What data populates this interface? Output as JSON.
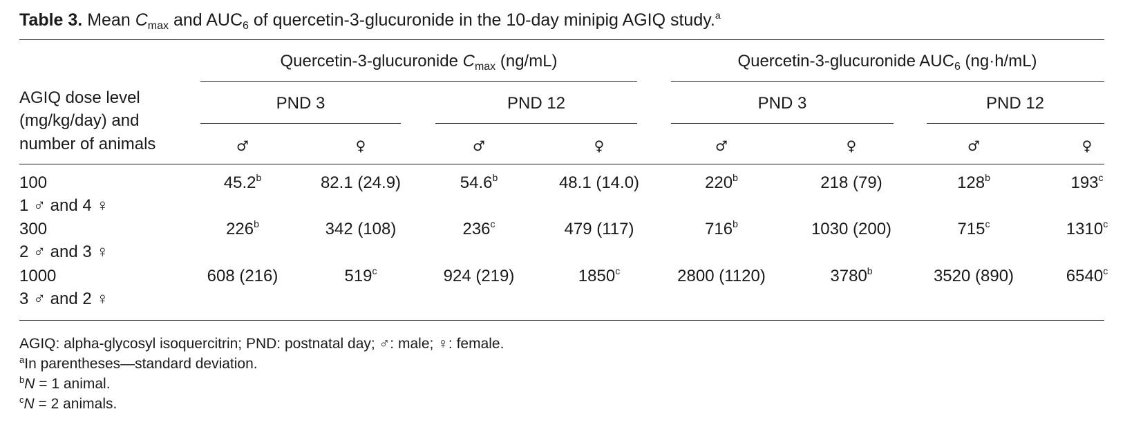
{
  "caption": {
    "label": "Table 3.",
    "text_pre": "Mean",
    "cmax_c": "C",
    "cmax_sub": "max",
    "and": "and AUC",
    "auc_sub": "6",
    "text_post": "of quercetin-3-glucuronide in the 10-day minipig AGIQ study.",
    "marker": "a"
  },
  "header": {
    "stub": [
      "AGIQ dose level",
      "(mg/kg/day) and",
      "number of animals"
    ],
    "group_cmax": {
      "pre": "Quercetin-3-glucuronide",
      "c": "C",
      "sub": "max",
      "post": "(ng/mL)"
    },
    "group_auc": {
      "pre": "Quercetin-3-glucuronide AUC",
      "sub": "6",
      "post": "(ng·h/mL)"
    },
    "pnd3": "PND 3",
    "pnd12": "PND 12",
    "male": "♂",
    "female": "♀"
  },
  "rows": [
    {
      "dose": "100",
      "animals": "1 ♂ and 4 ♀",
      "cells": [
        {
          "v": "45.2",
          "s": "b"
        },
        {
          "v": "82.1 (24.9)",
          "s": ""
        },
        {
          "v": "54.6",
          "s": "b"
        },
        {
          "v": "48.1 (14.0)",
          "s": ""
        },
        {
          "v": "220",
          "s": "b"
        },
        {
          "v": "218 (79)",
          "s": ""
        },
        {
          "v": "128",
          "s": "b"
        },
        {
          "v": "193",
          "s": "c"
        }
      ]
    },
    {
      "dose": "300",
      "animals": "2 ♂ and 3 ♀",
      "cells": [
        {
          "v": "226",
          "s": "b"
        },
        {
          "v": "342 (108)",
          "s": ""
        },
        {
          "v": "236",
          "s": "c"
        },
        {
          "v": "479 (117)",
          "s": ""
        },
        {
          "v": "716",
          "s": "b"
        },
        {
          "v": "1030 (200)",
          "s": ""
        },
        {
          "v": "715",
          "s": "c"
        },
        {
          "v": "1310",
          "s": "c"
        }
      ]
    },
    {
      "dose": "1000",
      "animals": "3 ♂ and 2 ♀",
      "cells": [
        {
          "v": "608 (216)",
          "s": ""
        },
        {
          "v": "519",
          "s": "c"
        },
        {
          "v": "924 (219)",
          "s": ""
        },
        {
          "v": "1850",
          "s": "c"
        },
        {
          "v": "2800 (1120)",
          "s": ""
        },
        {
          "v": "3780",
          "s": "b"
        },
        {
          "v": "3520 (890)",
          "s": ""
        },
        {
          "v": "6540",
          "s": "c"
        }
      ]
    }
  ],
  "footnotes": {
    "abbrev": "AGIQ: alpha-glycosyl isoquercitrin; PND: postnatal day; ♂: male; ♀: female.",
    "a_mark": "a",
    "a_text": "In parentheses—standard deviation.",
    "b_mark": "b",
    "b_n": "N",
    "b_text": " = 1 animal.",
    "c_mark": "c",
    "c_n": "N",
    "c_text": " = 2 animals."
  }
}
